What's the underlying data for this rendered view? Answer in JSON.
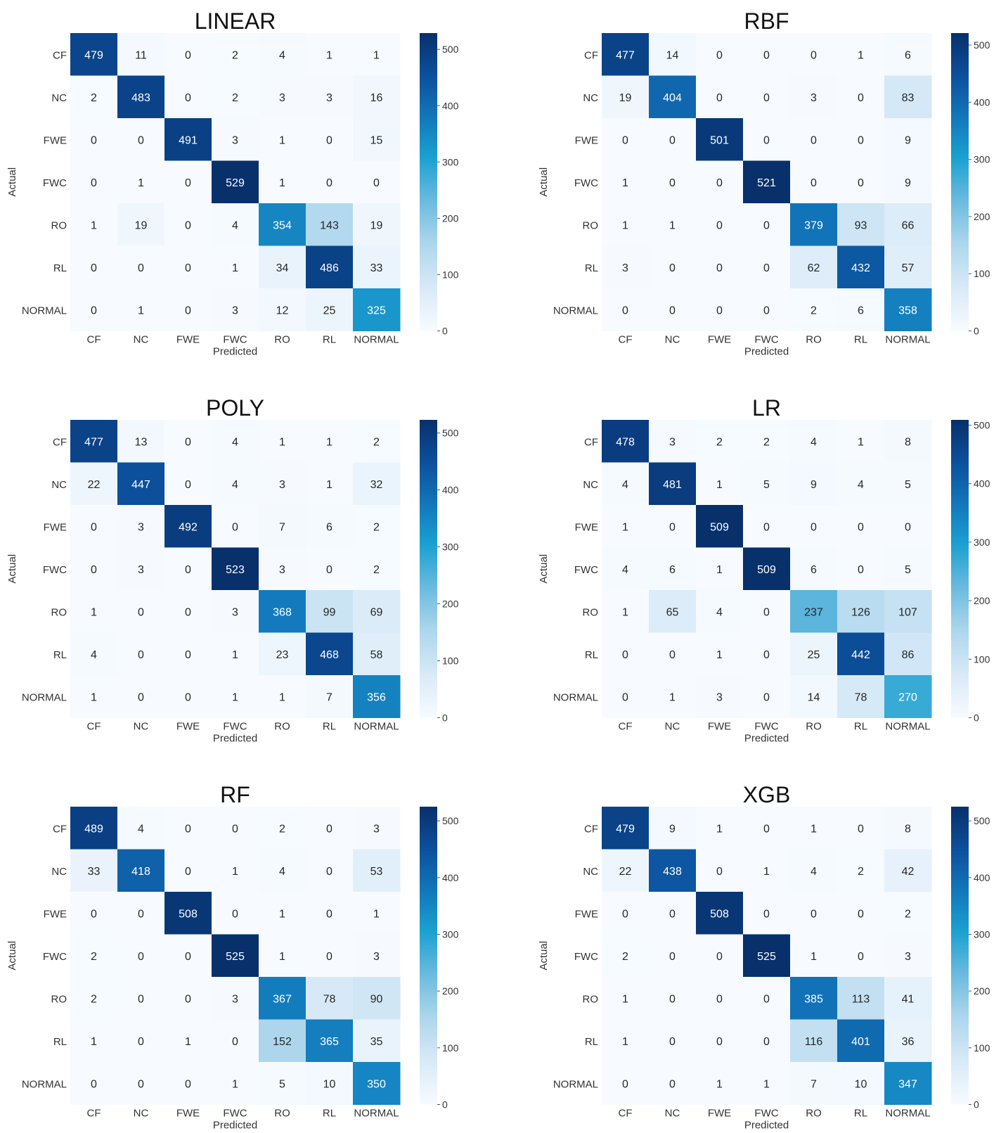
{
  "chart_data": [
    {
      "type": "heatmap",
      "title": "LINEAR",
      "xlabel": "Predicted",
      "ylabel": "Actual",
      "x_categories": [
        "CF",
        "NC",
        "FWE",
        "FWC",
        "RO",
        "RL",
        "NORMAL"
      ],
      "y_categories": [
        "CF",
        "NC",
        "FWE",
        "FWC",
        "RO",
        "RL",
        "NORMAL"
      ],
      "values": [
        [
          479,
          11,
          0,
          2,
          4,
          1,
          1
        ],
        [
          2,
          483,
          0,
          2,
          3,
          3,
          16
        ],
        [
          0,
          0,
          491,
          3,
          1,
          0,
          15
        ],
        [
          0,
          1,
          0,
          529,
          1,
          0,
          0
        ],
        [
          1,
          19,
          0,
          4,
          354,
          143,
          19
        ],
        [
          0,
          0,
          0,
          1,
          34,
          486,
          33
        ],
        [
          0,
          1,
          0,
          3,
          12,
          25,
          325
        ]
      ],
      "colorbar": {
        "vmin": 0,
        "vmax": 529,
        "ticks": [
          0,
          100,
          200,
          300,
          400,
          500
        ],
        "colormap": "Blues"
      }
    },
    {
      "type": "heatmap",
      "title": "RBF",
      "xlabel": "Predicted",
      "ylabel": "Actual",
      "x_categories": [
        "CF",
        "NC",
        "FWE",
        "FWC",
        "RO",
        "RL",
        "NORMAL"
      ],
      "y_categories": [
        "CF",
        "NC",
        "FWE",
        "FWC",
        "RO",
        "RL",
        "NORMAL"
      ],
      "values": [
        [
          477,
          14,
          0,
          0,
          0,
          1,
          6
        ],
        [
          19,
          404,
          0,
          0,
          3,
          0,
          83
        ],
        [
          0,
          0,
          501,
          0,
          0,
          0,
          9
        ],
        [
          1,
          0,
          0,
          521,
          0,
          0,
          9
        ],
        [
          1,
          1,
          0,
          0,
          379,
          93,
          66
        ],
        [
          3,
          0,
          0,
          0,
          62,
          432,
          57
        ],
        [
          0,
          0,
          0,
          0,
          2,
          6,
          358
        ]
      ],
      "colorbar": {
        "vmin": 0,
        "vmax": 521,
        "ticks": [
          0,
          100,
          200,
          300,
          400,
          500
        ],
        "colormap": "Blues"
      }
    },
    {
      "type": "heatmap",
      "title": "POLY",
      "xlabel": "Predicted",
      "ylabel": "Actual",
      "x_categories": [
        "CF",
        "NC",
        "FWE",
        "FWC",
        "RO",
        "RL",
        "NORMAL"
      ],
      "y_categories": [
        "CF",
        "NC",
        "FWE",
        "FWC",
        "RO",
        "RL",
        "NORMAL"
      ],
      "values": [
        [
          477,
          13,
          0,
          4,
          1,
          1,
          2
        ],
        [
          22,
          447,
          0,
          4,
          3,
          1,
          32
        ],
        [
          0,
          3,
          492,
          0,
          7,
          6,
          2
        ],
        [
          0,
          3,
          0,
          523,
          3,
          0,
          2
        ],
        [
          1,
          0,
          0,
          3,
          368,
          99,
          69
        ],
        [
          4,
          0,
          0,
          1,
          23,
          468,
          58
        ],
        [
          1,
          0,
          0,
          1,
          1,
          7,
          356
        ]
      ],
      "colorbar": {
        "vmin": 0,
        "vmax": 523,
        "ticks": [
          0,
          100,
          200,
          300,
          400,
          500
        ],
        "colormap": "Blues"
      }
    },
    {
      "type": "heatmap",
      "title": "LR",
      "xlabel": "Predicted",
      "ylabel": "Actual",
      "x_categories": [
        "CF",
        "NC",
        "FWE",
        "FWC",
        "RO",
        "RL",
        "NORMAL"
      ],
      "y_categories": [
        "CF",
        "NC",
        "FWE",
        "FWC",
        "RO",
        "RL",
        "NORMAL"
      ],
      "values": [
        [
          478,
          3,
          2,
          2,
          4,
          1,
          8
        ],
        [
          4,
          481,
          1,
          5,
          9,
          4,
          5
        ],
        [
          1,
          0,
          509,
          0,
          0,
          0,
          0
        ],
        [
          4,
          6,
          1,
          509,
          6,
          0,
          5
        ],
        [
          1,
          65,
          4,
          0,
          237,
          126,
          107
        ],
        [
          0,
          0,
          1,
          0,
          25,
          442,
          86
        ],
        [
          0,
          1,
          3,
          0,
          14,
          78,
          270
        ]
      ],
      "colorbar": {
        "vmin": 0,
        "vmax": 509,
        "ticks": [
          0,
          100,
          200,
          300,
          400,
          500
        ],
        "colormap": "Blues"
      }
    },
    {
      "type": "heatmap",
      "title": "RF",
      "xlabel": "Predicted",
      "ylabel": "Actual",
      "x_categories": [
        "CF",
        "NC",
        "FWE",
        "FWC",
        "RO",
        "RL",
        "NORMAL"
      ],
      "y_categories": [
        "CF",
        "NC",
        "FWE",
        "FWC",
        "RO",
        "RL",
        "NORMAL"
      ],
      "values": [
        [
          489,
          4,
          0,
          0,
          2,
          0,
          3
        ],
        [
          33,
          418,
          0,
          1,
          4,
          0,
          53
        ],
        [
          0,
          0,
          508,
          0,
          1,
          0,
          1
        ],
        [
          2,
          0,
          0,
          525,
          1,
          0,
          3
        ],
        [
          2,
          0,
          0,
          3,
          367,
          78,
          90
        ],
        [
          1,
          0,
          1,
          0,
          152,
          365,
          35
        ],
        [
          0,
          0,
          0,
          1,
          5,
          10,
          350
        ]
      ],
      "colorbar": {
        "vmin": 0,
        "vmax": 525,
        "ticks": [
          0,
          100,
          200,
          300,
          400,
          500
        ],
        "colormap": "Blues"
      }
    },
    {
      "type": "heatmap",
      "title": "XGB",
      "xlabel": "Predicted",
      "ylabel": "Actual",
      "x_categories": [
        "CF",
        "NC",
        "FWE",
        "FWC",
        "RO",
        "RL",
        "NORMAL"
      ],
      "y_categories": [
        "CF",
        "NC",
        "FWE",
        "FWC",
        "RO",
        "RL",
        "NORMAL"
      ],
      "values": [
        [
          479,
          9,
          1,
          0,
          1,
          0,
          8
        ],
        [
          22,
          438,
          0,
          1,
          4,
          2,
          42
        ],
        [
          0,
          0,
          508,
          0,
          0,
          0,
          2
        ],
        [
          2,
          0,
          0,
          525,
          1,
          0,
          3
        ],
        [
          1,
          0,
          0,
          0,
          385,
          113,
          41
        ],
        [
          1,
          0,
          0,
          0,
          116,
          401,
          36
        ],
        [
          0,
          0,
          1,
          1,
          7,
          10,
          347
        ]
      ],
      "colorbar": {
        "vmin": 0,
        "vmax": 525,
        "ticks": [
          0,
          100,
          200,
          300,
          400,
          500
        ],
        "colormap": "Blues"
      }
    }
  ]
}
